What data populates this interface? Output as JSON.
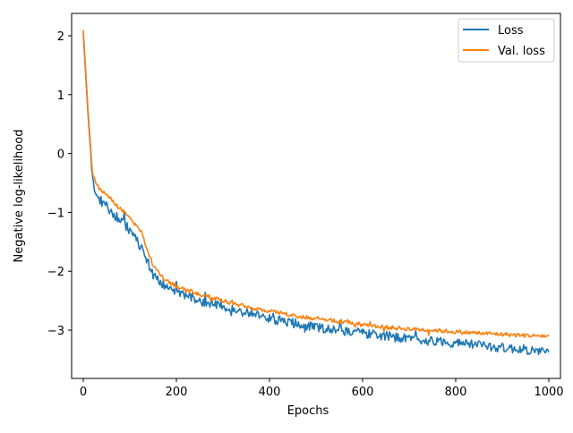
{
  "chart_data": {
    "type": "line",
    "xlabel": "Epochs",
    "ylabel": "Negative log-likelihood",
    "xlim": [
      -25,
      1025
    ],
    "ylim": [
      -3.82,
      2.38
    ],
    "xticks": [
      0,
      200,
      400,
      600,
      800,
      1000
    ],
    "yticks": [
      2,
      1,
      0,
      -1,
      -2,
      -3
    ],
    "ytick_labels": [
      "2",
      "1",
      "0",
      "−1",
      "−2",
      "−3"
    ],
    "grid": false,
    "legend_position": "top-right",
    "series": [
      {
        "name": "Loss",
        "color": "#1f77b4",
        "x": [
          0,
          10,
          20,
          30,
          50,
          75,
          100,
          125,
          150,
          175,
          200,
          250,
          300,
          350,
          400,
          450,
          500,
          550,
          600,
          650,
          700,
          750,
          800,
          850,
          900,
          950,
          1000
        ],
        "y": [
          2.05,
          0.7,
          -0.45,
          -0.75,
          -0.9,
          -1.1,
          -1.3,
          -1.6,
          -2.05,
          -2.25,
          -2.35,
          -2.5,
          -2.6,
          -2.7,
          -2.8,
          -2.88,
          -2.95,
          -3.0,
          -3.05,
          -3.1,
          -3.15,
          -3.18,
          -3.22,
          -3.25,
          -3.3,
          -3.33,
          -3.38
        ],
        "noise": 0.08
      },
      {
        "name": "Val. loss",
        "color": "#ff7f0e",
        "x": [
          0,
          10,
          20,
          30,
          50,
          75,
          100,
          125,
          150,
          175,
          200,
          250,
          300,
          350,
          400,
          450,
          500,
          550,
          600,
          650,
          700,
          750,
          800,
          850,
          900,
          950,
          1000
        ],
        "y": [
          2.1,
          0.75,
          -0.35,
          -0.55,
          -0.7,
          -0.9,
          -1.1,
          -1.35,
          -1.9,
          -2.15,
          -2.25,
          -2.4,
          -2.5,
          -2.6,
          -2.68,
          -2.75,
          -2.8,
          -2.85,
          -2.9,
          -2.95,
          -2.98,
          -3.0,
          -3.03,
          -3.05,
          -3.07,
          -3.09,
          -3.1
        ],
        "noise": 0.035
      }
    ]
  }
}
